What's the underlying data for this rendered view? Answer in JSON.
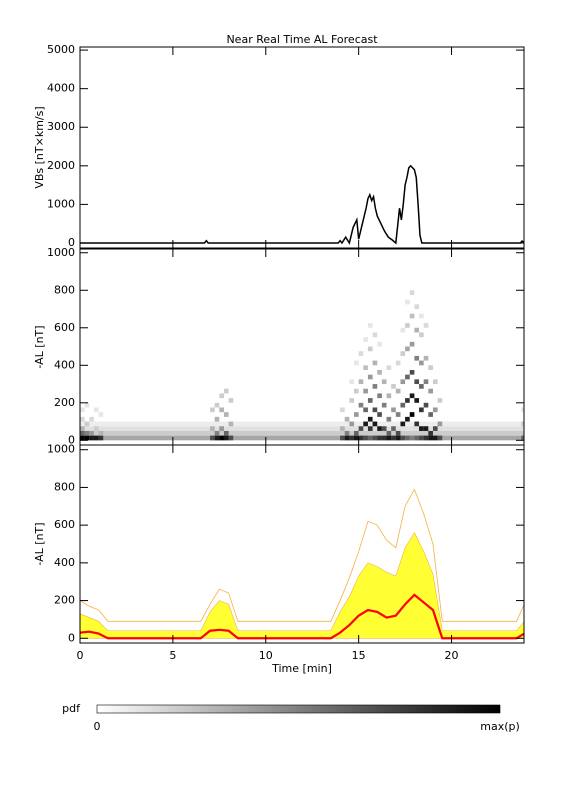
{
  "chart_data": [
    {
      "type": "line",
      "title": "Near Real Time AL Forecast",
      "ylabel": "VBs [nT×km/s]",
      "color": "#000000",
      "xlim": [
        0,
        23.9
      ],
      "ylim": [
        -130,
        5080
      ],
      "yticks": [
        0,
        1000,
        2000,
        3000,
        4000,
        5000
      ],
      "x": [
        0,
        6.7,
        6.8,
        6.9,
        13.9,
        14.0,
        14.1,
        14.3,
        14.5,
        14.7,
        14.9,
        15.0,
        15.2,
        15.4,
        15.5,
        15.6,
        15.7,
        15.8,
        15.9,
        16.0,
        16.2,
        16.4,
        16.6,
        16.8,
        17.0,
        17.2,
        17.3,
        17.4,
        17.5,
        17.6,
        17.7,
        17.8,
        17.9,
        18.0,
        18.1,
        18.2,
        18.3,
        18.4,
        23.7,
        23.8,
        23.9
      ],
      "values": [
        0,
        0,
        60,
        0,
        0,
        60,
        0,
        150,
        0,
        400,
        600,
        100,
        500,
        900,
        1150,
        1250,
        1100,
        1200,
        900,
        700,
        500,
        300,
        150,
        80,
        0,
        900,
        600,
        1000,
        1500,
        1700,
        1950,
        2000,
        1950,
        1900,
        1700,
        1000,
        200,
        0,
        0,
        50,
        0
      ]
    },
    {
      "type": "heatmap",
      "ylabel": "-AL [nT]",
      "xlim": [
        0,
        23.9
      ],
      "ylim": [
        -25,
        1020
      ],
      "yticks": [
        0,
        200,
        400,
        600,
        800,
        1000
      ],
      "band": {
        "y": [
          0,
          25,
          50,
          75
        ],
        "p": [
          0.35,
          0.2,
          0.12,
          0.07
        ]
      },
      "columns": [
        {
          "x": 0,
          "y": [
            0,
            25,
            50,
            100,
            150
          ],
          "p": [
            1,
            0.6,
            0.3,
            0.15,
            0.1
          ]
        },
        {
          "x": 0.25,
          "y": [
            0,
            25,
            75,
            175
          ],
          "p": [
            1,
            0.5,
            0.2,
            0.1
          ]
        },
        {
          "x": 0.5,
          "y": [
            0,
            25,
            100
          ],
          "p": [
            0.9,
            0.4,
            0.15
          ]
        },
        {
          "x": 0.75,
          "y": [
            0,
            50,
            150
          ],
          "p": [
            0.9,
            0.2,
            0.1
          ]
        },
        {
          "x": 1.0,
          "y": [
            0,
            25,
            125
          ],
          "p": [
            0.8,
            0.3,
            0.1
          ]
        },
        {
          "x": 7.0,
          "y": [
            0,
            50,
            150
          ],
          "p": [
            0.7,
            0.3,
            0.2
          ]
        },
        {
          "x": 7.25,
          "y": [
            0,
            25,
            100,
            175
          ],
          "p": [
            0.9,
            0.5,
            0.3,
            0.2
          ]
        },
        {
          "x": 7.5,
          "y": [
            0,
            50,
            150,
            225
          ],
          "p": [
            1,
            0.4,
            0.3,
            0.2
          ]
        },
        {
          "x": 7.75,
          "y": [
            0,
            25,
            125,
            250
          ],
          "p": [
            0.9,
            0.6,
            0.3,
            0.2
          ]
        },
        {
          "x": 8.0,
          "y": [
            0,
            75,
            200
          ],
          "p": [
            0.7,
            0.3,
            0.2
          ]
        },
        {
          "x": 14.0,
          "y": [
            0,
            50,
            150
          ],
          "p": [
            0.7,
            0.3,
            0.15
          ]
        },
        {
          "x": 14.25,
          "y": [
            0,
            25,
            100
          ],
          "p": [
            0.9,
            0.5,
            0.3
          ]
        },
        {
          "x": 14.5,
          "y": [
            0,
            75,
            200,
            300
          ],
          "p": [
            0.8,
            0.4,
            0.2,
            0.1
          ]
        },
        {
          "x": 14.75,
          "y": [
            0,
            25,
            125,
            250,
            400
          ],
          "p": [
            0.9,
            0.6,
            0.4,
            0.2,
            0.1
          ]
        },
        {
          "x": 15.0,
          "y": [
            0,
            50,
            175,
            300,
            450
          ],
          "p": [
            0.8,
            0.7,
            0.5,
            0.3,
            0.15
          ]
        },
        {
          "x": 15.25,
          "y": [
            0,
            75,
            150,
            250,
            375,
            525
          ],
          "p": [
            0.7,
            0.9,
            0.6,
            0.4,
            0.25,
            0.1
          ]
        },
        {
          "x": 15.5,
          "y": [
            0,
            50,
            100,
            200,
            325,
            475,
            600
          ],
          "p": [
            0.6,
            0.8,
            0.9,
            0.6,
            0.4,
            0.2,
            0.1
          ]
        },
        {
          "x": 15.75,
          "y": [
            0,
            75,
            150,
            275,
            400,
            550
          ],
          "p": [
            0.7,
            0.9,
            0.7,
            0.5,
            0.3,
            0.15
          ]
        },
        {
          "x": 16.0,
          "y": [
            0,
            50,
            125,
            225,
            350,
            500
          ],
          "p": [
            0.8,
            0.9,
            0.7,
            0.5,
            0.3,
            0.1
          ]
        },
        {
          "x": 16.25,
          "y": [
            0,
            50,
            175,
            300
          ],
          "p": [
            0.8,
            0.7,
            0.5,
            0.3
          ]
        },
        {
          "x": 16.5,
          "y": [
            0,
            25,
            100,
            225,
            375
          ],
          "p": [
            0.9,
            0.6,
            0.5,
            0.3,
            0.15
          ]
        },
        {
          "x": 16.75,
          "y": [
            0,
            50,
            150,
            275
          ],
          "p": [
            0.8,
            0.6,
            0.4,
            0.2
          ]
        },
        {
          "x": 17.0,
          "y": [
            0,
            25,
            125,
            250,
            400
          ],
          "p": [
            0.9,
            0.7,
            0.5,
            0.3,
            0.15
          ]
        },
        {
          "x": 17.25,
          "y": [
            0,
            75,
            175,
            300,
            450,
            575
          ],
          "p": [
            0.7,
            0.9,
            0.6,
            0.4,
            0.2,
            0.1
          ]
        },
        {
          "x": 17.5,
          "y": [
            0,
            100,
            200,
            325,
            475,
            600,
            725
          ],
          "p": [
            0.6,
            0.9,
            0.8,
            0.6,
            0.35,
            0.2,
            0.1
          ]
        },
        {
          "x": 17.75,
          "y": [
            0,
            125,
            225,
            350,
            500,
            650,
            775
          ],
          "p": [
            0.5,
            1,
            0.9,
            0.7,
            0.4,
            0.25,
            0.15
          ]
        },
        {
          "x": 18.0,
          "y": [
            0,
            75,
            200,
            300,
            425,
            575,
            700
          ],
          "p": [
            0.6,
            0.8,
            0.9,
            0.7,
            0.5,
            0.3,
            0.15
          ]
        },
        {
          "x": 18.25,
          "y": [
            0,
            50,
            150,
            275,
            400,
            550,
            650
          ],
          "p": [
            0.7,
            0.9,
            0.8,
            0.6,
            0.4,
            0.2,
            0.1
          ]
        },
        {
          "x": 18.5,
          "y": [
            0,
            50,
            175,
            300,
            425,
            600
          ],
          "p": [
            0.8,
            0.9,
            0.7,
            0.5,
            0.3,
            0.15
          ]
        },
        {
          "x": 18.75,
          "y": [
            0,
            25,
            125,
            250,
            375
          ],
          "p": [
            0.9,
            0.8,
            0.6,
            0.4,
            0.2
          ]
        },
        {
          "x": 19.0,
          "y": [
            0,
            50,
            150,
            300
          ],
          "p": [
            0.9,
            0.7,
            0.4,
            0.2
          ]
        },
        {
          "x": 19.25,
          "y": [
            0,
            75,
            200
          ],
          "p": [
            0.7,
            0.4,
            0.2
          ]
        },
        {
          "x": 23.75,
          "y": [
            0,
            75,
            150
          ],
          "p": [
            0.6,
            0.2,
            0.1
          ]
        }
      ]
    },
    {
      "type": "band-line",
      "ylabel": "-AL [nT]",
      "xlabel": "Time [min]",
      "xlim": [
        0,
        23.9
      ],
      "ylim": [
        -25,
        1025
      ],
      "yticks": [
        0,
        200,
        400,
        600,
        800,
        1000
      ],
      "xticks": [
        0,
        5,
        10,
        15,
        20
      ],
      "x": [
        0,
        0.5,
        1,
        1.5,
        2,
        2.5,
        3,
        3.5,
        4,
        4.5,
        5,
        5.5,
        6,
        6.5,
        7,
        7.5,
        8,
        8.5,
        9,
        9.5,
        10,
        10.5,
        11,
        11.5,
        12,
        12.5,
        13,
        13.5,
        14,
        14.5,
        15,
        15.5,
        16,
        16.5,
        17,
        17.5,
        18,
        18.5,
        19,
        19.5,
        20,
        20.5,
        21,
        21.5,
        22,
        22.5,
        23,
        23.5,
        24
      ],
      "series": [
        {
          "color": "#f5b041",
          "values": [
            200,
            170,
            150,
            90,
            90,
            90,
            90,
            90,
            90,
            90,
            90,
            90,
            90,
            90,
            180,
            260,
            240,
            90,
            90,
            90,
            90,
            90,
            90,
            90,
            90,
            90,
            90,
            90,
            200,
            320,
            460,
            620,
            600,
            520,
            480,
            700,
            790,
            660,
            500,
            90,
            90,
            90,
            90,
            90,
            90,
            90,
            90,
            90,
            200
          ]
        },
        {
          "color": "#ffff33",
          "fill": true,
          "values": [
            130,
            110,
            90,
            40,
            40,
            40,
            40,
            40,
            40,
            40,
            40,
            40,
            40,
            40,
            140,
            200,
            180,
            40,
            40,
            40,
            40,
            40,
            40,
            40,
            40,
            40,
            40,
            40,
            140,
            220,
            330,
            400,
            380,
            350,
            330,
            480,
            560,
            460,
            340,
            40,
            40,
            40,
            40,
            40,
            40,
            40,
            40,
            40,
            100
          ]
        },
        {
          "color": "#ff0000",
          "values": [
            30,
            35,
            25,
            0,
            0,
            0,
            0,
            0,
            0,
            0,
            0,
            0,
            0,
            0,
            40,
            45,
            40,
            0,
            0,
            0,
            0,
            0,
            0,
            0,
            0,
            0,
            0,
            0,
            30,
            70,
            120,
            150,
            140,
            110,
            120,
            180,
            230,
            190,
            150,
            0,
            0,
            0,
            0,
            0,
            0,
            0,
            0,
            0,
            30
          ]
        }
      ]
    }
  ],
  "colorbar": {
    "label": "pdf",
    "min_label": "0",
    "max_label": "max(p)"
  }
}
